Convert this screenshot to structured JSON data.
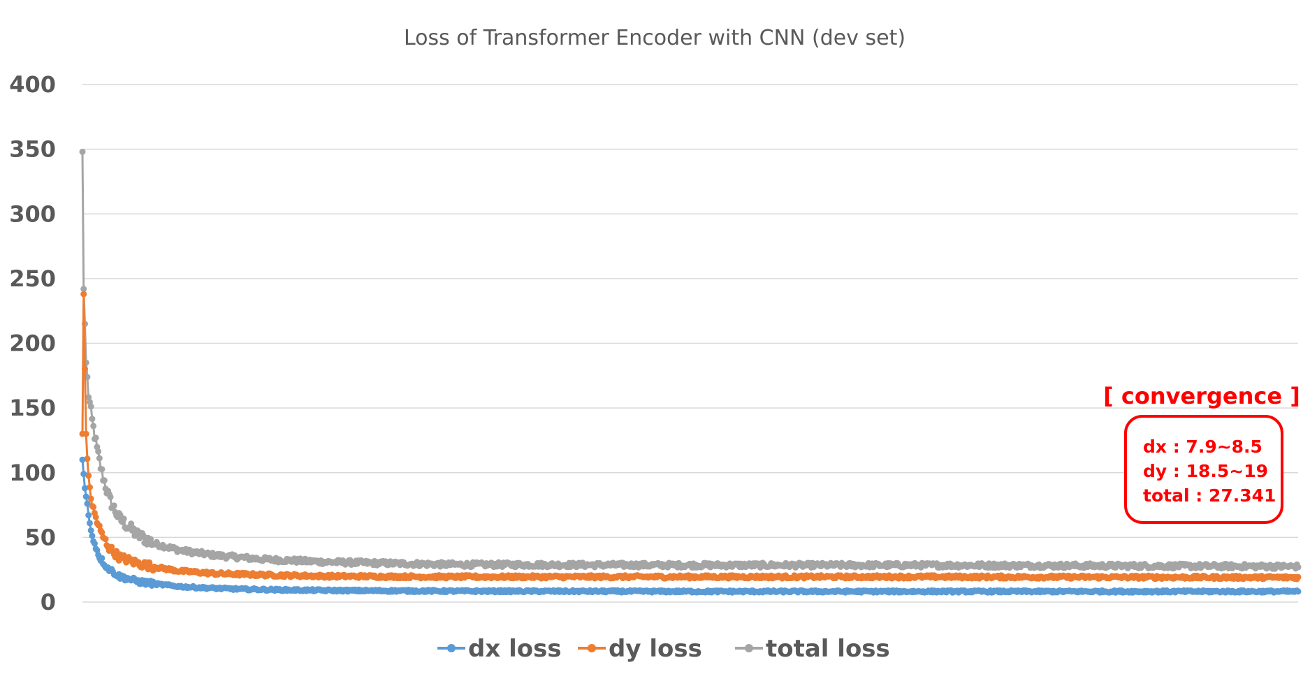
{
  "chart_data": {
    "type": "line",
    "title": "Loss of Transformer Encoder with CNN (dev set)",
    "xlabel": "",
    "ylabel": "",
    "ylim": [
      0,
      400
    ],
    "y_ticks": [
      0,
      50,
      100,
      150,
      200,
      250,
      300,
      350,
      400
    ],
    "x_ticks_visible": false,
    "grid": true,
    "legend_position": "bottom",
    "n_points": 1000,
    "series": [
      {
        "name": "dx loss",
        "color": "#5b9bd5",
        "keypoints": [
          [
            0,
            110
          ],
          [
            2,
            88
          ],
          [
            4,
            75
          ],
          [
            6,
            60
          ],
          [
            8,
            52
          ],
          [
            10,
            45
          ],
          [
            14,
            35
          ],
          [
            20,
            27
          ],
          [
            30,
            20
          ],
          [
            45,
            16
          ],
          [
            60,
            14
          ],
          [
            80,
            12
          ],
          [
            100,
            11
          ],
          [
            130,
            10
          ],
          [
            160,
            9.5
          ],
          [
            200,
            9
          ],
          [
            300,
            8.5
          ],
          [
            500,
            8.2
          ],
          [
            700,
            8.2
          ],
          [
            1000,
            8.2
          ]
        ],
        "noise": 0.8
      },
      {
        "name": "dy loss",
        "color": "#ed7d31",
        "keypoints": [
          [
            0,
            130
          ],
          [
            1,
            238
          ],
          [
            2,
            180
          ],
          [
            3,
            130
          ],
          [
            5,
            95
          ],
          [
            8,
            75
          ],
          [
            12,
            62
          ],
          [
            16,
            52
          ],
          [
            22,
            42
          ],
          [
            30,
            35
          ],
          [
            45,
            30
          ],
          [
            60,
            27
          ],
          [
            80,
            24
          ],
          [
            110,
            22
          ],
          [
            150,
            21
          ],
          [
            200,
            20
          ],
          [
            300,
            19.5
          ],
          [
            500,
            19.5
          ],
          [
            700,
            19.5
          ],
          [
            1000,
            19
          ]
        ],
        "noise": 1.2
      },
      {
        "name": "total loss",
        "color": "#a5a5a5",
        "keypoints": [
          [
            0,
            348
          ],
          [
            1,
            242
          ],
          [
            2,
            215
          ],
          [
            3,
            185
          ],
          [
            5,
            160
          ],
          [
            8,
            140
          ],
          [
            12,
            118
          ],
          [
            16,
            100
          ],
          [
            22,
            80
          ],
          [
            30,
            65
          ],
          [
            45,
            52
          ],
          [
            60,
            45
          ],
          [
            80,
            40
          ],
          [
            110,
            36
          ],
          [
            150,
            33
          ],
          [
            200,
            31
          ],
          [
            300,
            29
          ],
          [
            500,
            28.5
          ],
          [
            700,
            28.5
          ],
          [
            1000,
            27.5
          ]
        ],
        "noise": 1.8
      }
    ]
  },
  "annotation": {
    "title": "[ convergence ]",
    "lines": [
      "dx : 7.9~8.5",
      "dy : 18.5~19",
      "total : 27.341"
    ],
    "color": "#ff0000"
  }
}
